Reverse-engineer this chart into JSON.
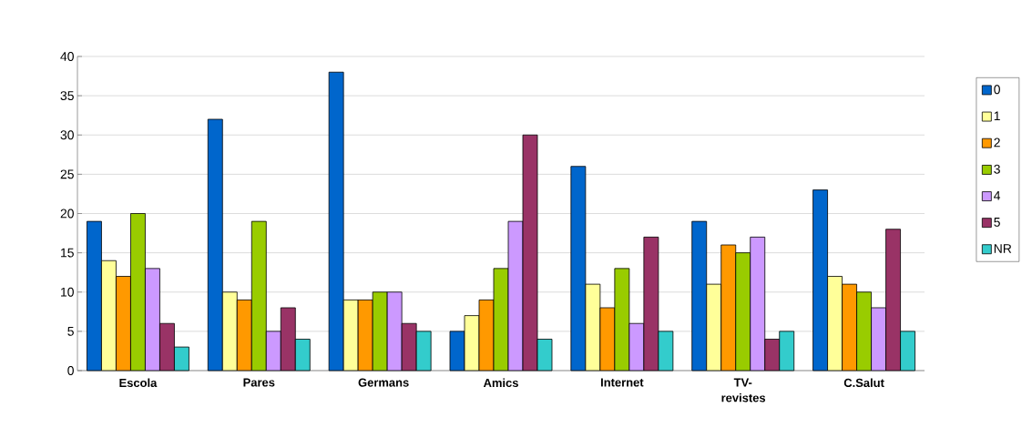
{
  "chart_data": {
    "type": "bar",
    "categories": [
      "Escola",
      "Pares",
      "Germans",
      "Amics",
      "Internet",
      "TV-revistes",
      "C.Salut"
    ],
    "series": [
      {
        "name": "0",
        "color": "#0066cc",
        "values": [
          19,
          32,
          38,
          5,
          26,
          19,
          23
        ]
      },
      {
        "name": "1",
        "color": "#ffff99",
        "values": [
          14,
          10,
          9,
          7,
          11,
          11,
          12
        ]
      },
      {
        "name": "2",
        "color": "#ff9900",
        "values": [
          12,
          9,
          9,
          9,
          8,
          16,
          11
        ]
      },
      {
        "name": "3",
        "color": "#99cc00",
        "values": [
          20,
          19,
          10,
          13,
          13,
          15,
          10
        ]
      },
      {
        "name": "4",
        "color": "#cc99ff",
        "values": [
          13,
          5,
          10,
          19,
          6,
          17,
          8
        ]
      },
      {
        "name": "5",
        "color": "#993366",
        "values": [
          6,
          8,
          6,
          30,
          17,
          4,
          18
        ]
      },
      {
        "name": "NR",
        "color": "#33cccc",
        "values": [
          3,
          4,
          5,
          4,
          5,
          5,
          5
        ]
      }
    ],
    "ylim": [
      0,
      40
    ],
    "yticks": [
      0,
      5,
      10,
      15,
      20,
      25,
      30,
      35,
      40
    ],
    "grid": "y",
    "legend": "right"
  }
}
